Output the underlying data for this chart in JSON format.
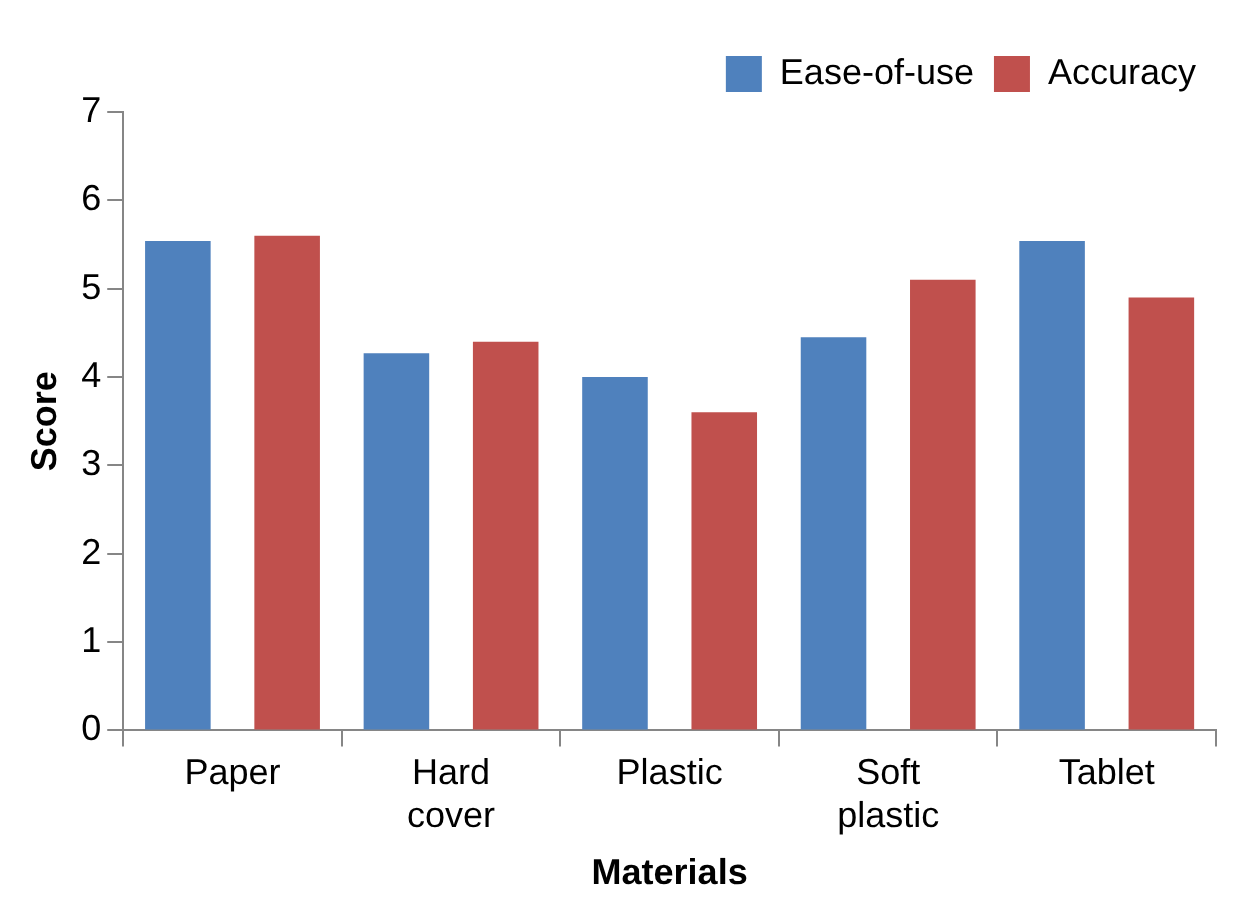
{
  "chart_data": {
    "type": "bar",
    "xlabel": "Materials",
    "ylabel": "Score",
    "categories": [
      "Paper",
      "Hard cover",
      "Plastic",
      "Soft plastic",
      "Tablet"
    ],
    "series": [
      {
        "name": "Ease-of-use",
        "color": "#4f81bd",
        "values": [
          5.54,
          4.27,
          4.0,
          4.45,
          5.54
        ]
      },
      {
        "name": "Accuracy",
        "color": "#c0504d",
        "values": [
          5.6,
          4.4,
          3.6,
          5.1,
          4.9
        ]
      }
    ],
    "ylim": [
      0,
      7
    ],
    "yticks": [
      0,
      1,
      2,
      3,
      4,
      5,
      6,
      7
    ],
    "grid": false,
    "legend": "top right"
  }
}
